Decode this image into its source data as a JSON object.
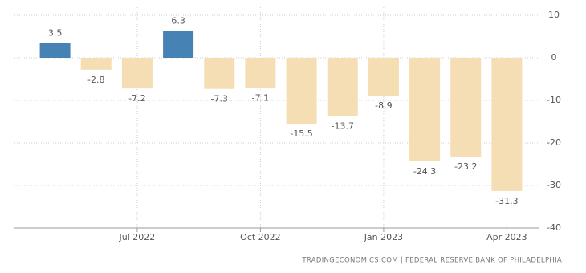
{
  "chart_data": {
    "type": "bar",
    "categories": [
      null,
      null,
      "Jul 2022",
      null,
      null,
      "Oct 2022",
      null,
      null,
      "Jan 2023",
      null,
      null,
      "Apr 2023"
    ],
    "values": [
      3.5,
      -2.8,
      -7.2,
      6.3,
      -7.3,
      -7.1,
      -15.5,
      -13.7,
      -8.9,
      -24.3,
      -23.2,
      -31.3
    ],
    "positive_color": "#4682b4",
    "negative_color": "#f5deb3",
    "ylim": [
      -40,
      10
    ],
    "yticks": [
      -40,
      -30,
      -20,
      -10,
      0,
      10
    ],
    "grid": true,
    "source": "TRADINGECONOMICS.COM | FEDERAL RESERVE BANK OF PHILADELPHIA"
  }
}
